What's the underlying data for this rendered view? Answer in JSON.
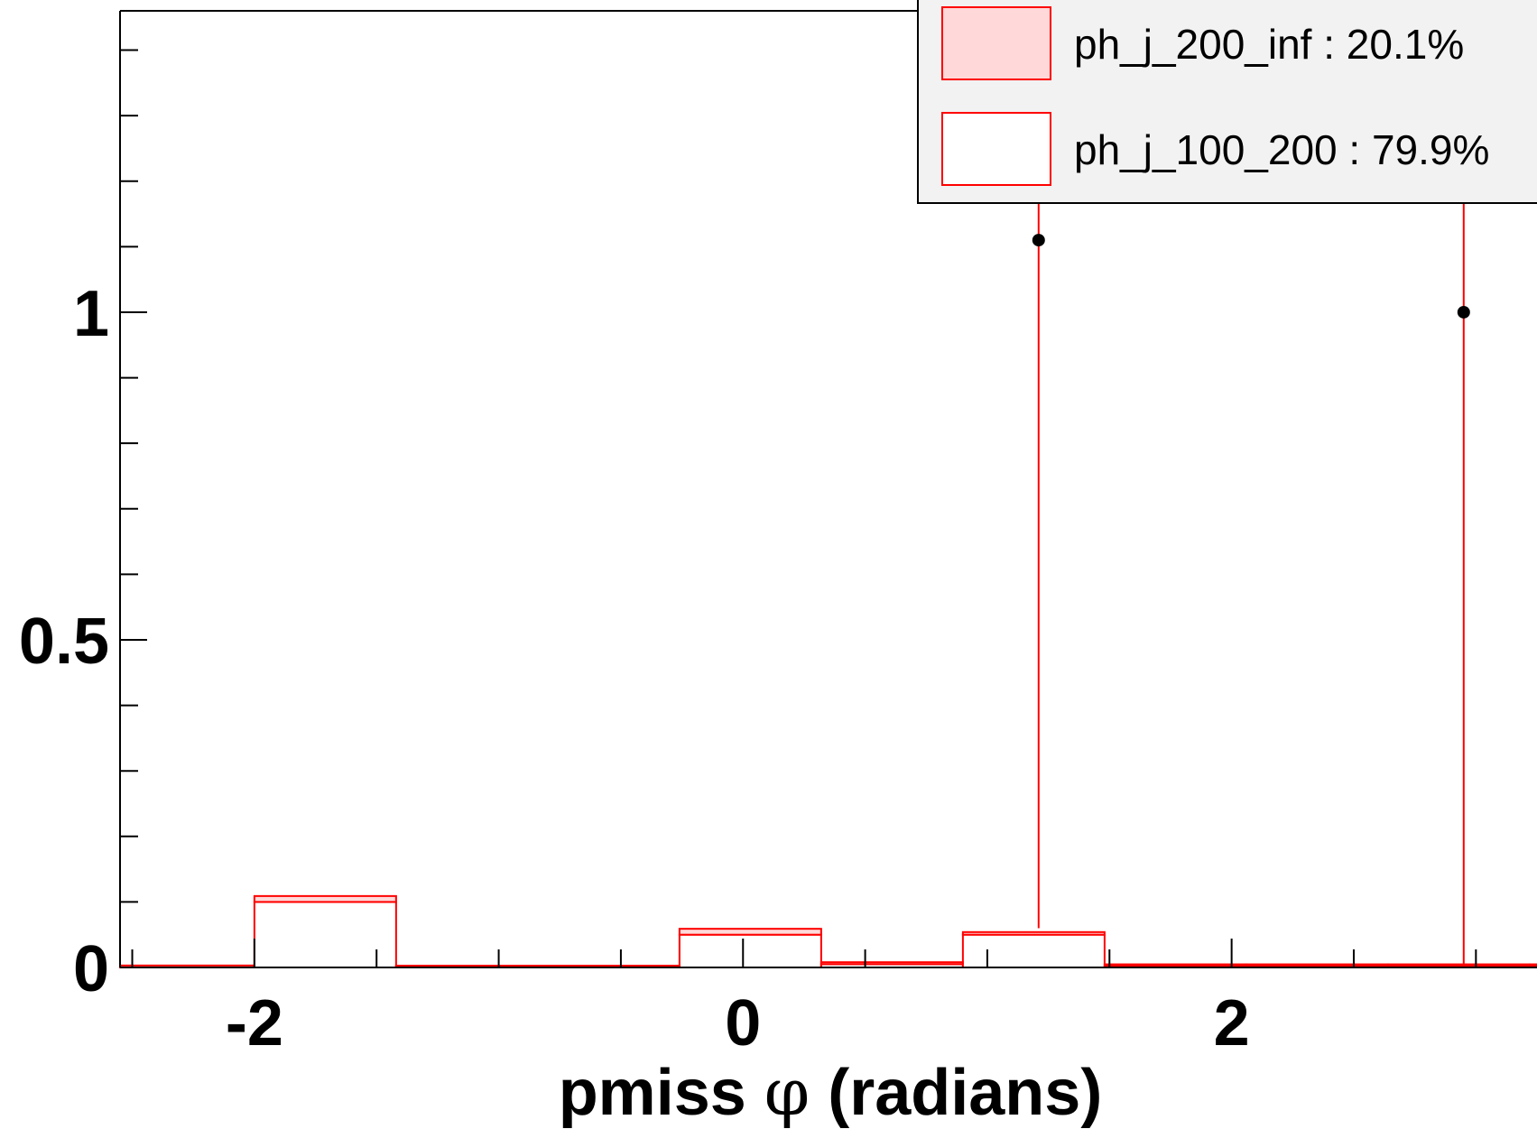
{
  "chart_data": {
    "type": "histogram",
    "xlabel_prefix": "pmiss",
    "xlabel_symbol": "φ",
    "xlabel_suffix": "(radians)",
    "ylabel": "",
    "xlim": [
      -2.55,
      3.25
    ],
    "ylim": [
      0,
      1.46
    ],
    "bin_edges": [
      -2.55,
      -2.0,
      -1.42,
      -0.84,
      -0.26,
      0.32,
      0.9,
      1.48,
      2.06,
      2.64,
      3.22,
      3.8
    ],
    "x_ticks": [
      -2,
      0,
      2
    ],
    "y_ticks": [
      0,
      0.5,
      1
    ],
    "x_minor_step": 0.5,
    "y_minor_step": 0.1,
    "series": [
      {
        "name": "ph_j_100_200",
        "percent": "79.9%",
        "fill": "#ffffff",
        "line_color": "#ff0000",
        "values": [
          0.0,
          0.1,
          0.0,
          0.0,
          0.05,
          0.005,
          0.05,
          0.002,
          0.002,
          0.002,
          0.002
        ]
      },
      {
        "name": "ph_j_200_inf",
        "percent": "20.1%",
        "fill": "#ffd9d9",
        "line_color": "#ff0000",
        "values": [
          0.003,
          0.009,
          0.0,
          0.0,
          0.009,
          0.003,
          0.004,
          0.001,
          0.001,
          0.001,
          0.001
        ]
      }
    ],
    "data_points": [
      {
        "x": 1.21,
        "y": 1.11,
        "err_low": 1.05,
        "err_high": 0.35
      },
      {
        "x": 2.95,
        "y": 1.0,
        "err_low": 1.0,
        "err_high": 0.35
      }
    ],
    "legend": {
      "placement": "top-right",
      "entries": [
        {
          "label": "ph_j_200_inf : 20.1%",
          "fill": "#ffd9d9",
          "line_color": "#ff0000"
        },
        {
          "label": "ph_j_100_200 : 79.9%",
          "fill": "#ffffff",
          "line_color": "#ff0000"
        }
      ]
    },
    "grid": false
  }
}
